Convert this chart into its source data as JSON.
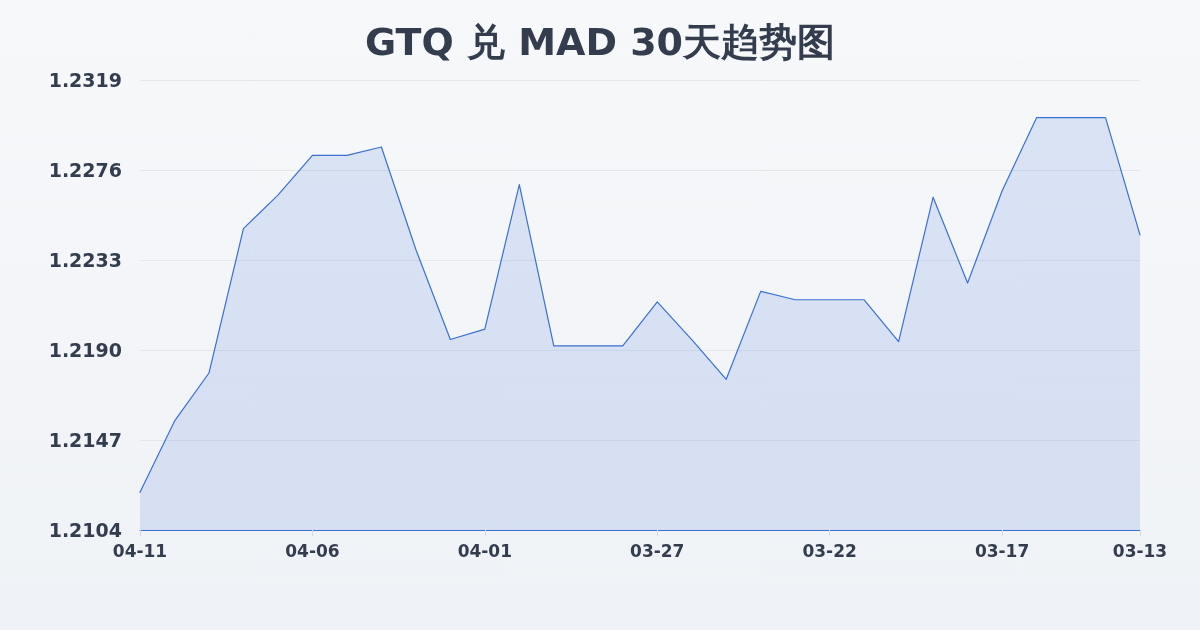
{
  "chart_data": {
    "type": "area",
    "title": "GTQ 兑 MAD 30天趋势图",
    "categories": [
      "04-11",
      null,
      null,
      null,
      null,
      "04-06",
      null,
      null,
      null,
      null,
      "04-01",
      null,
      null,
      null,
      null,
      "03-27",
      null,
      null,
      null,
      null,
      "03-22",
      null,
      null,
      null,
      null,
      "03-17",
      null,
      null,
      null,
      "03-13"
    ],
    "values": [
      1.2122,
      1.2156,
      1.2179,
      1.2248,
      1.2264,
      1.2283,
      1.2283,
      1.2287,
      1.2238,
      1.2195,
      1.22,
      1.2269,
      1.2192,
      1.2192,
      1.2192,
      1.2213,
      1.2195,
      1.2176,
      1.2218,
      1.2214,
      1.2214,
      1.2214,
      1.2194,
      1.2263,
      1.2222,
      1.2266,
      1.2301,
      1.2301,
      1.2301,
      1.2245
    ],
    "color": "#3b6fd4",
    "ylim": [
      1.2104,
      1.2319
    ],
    "yticks": [
      1.2104,
      1.2147,
      {
        "value": 1.219,
        "label": "1.2190"
      },
      1.2233,
      1.2276,
      1.2319
    ],
    "grid": "y",
    "marker": "none"
  }
}
